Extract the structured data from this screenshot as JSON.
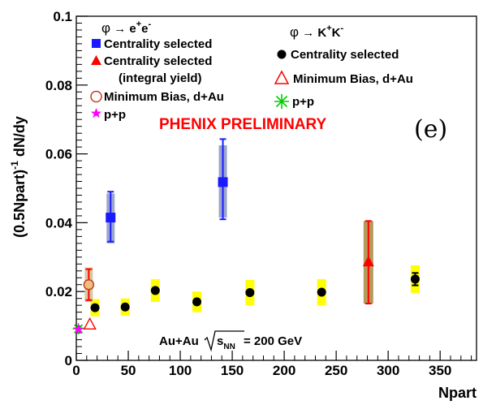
{
  "chart_data": {
    "type": "scatter",
    "xlabel": "Npart",
    "ylabel": "(0.5Npart)",
    "ylabel_sup": "-1",
    "ylabel_tail": " dN/dy",
    "xlim": [
      0,
      385
    ],
    "ylim": [
      0,
      0.1
    ],
    "x_ticks": [
      {
        "v": 0,
        "label": "0"
      },
      {
        "v": 50,
        "label": "50"
      },
      {
        "v": 100,
        "label": "100"
      },
      {
        "v": 150,
        "label": "150"
      },
      {
        "v": 200,
        "label": "200"
      },
      {
        "v": 250,
        "label": "250"
      },
      {
        "v": 300,
        "label": "300"
      },
      {
        "v": 350,
        "label": "350"
      }
    ],
    "y_ticks": [
      {
        "v": 0,
        "label": "0"
      },
      {
        "v": 0.02,
        "label": "0.02"
      },
      {
        "v": 0.04,
        "label": "0.04"
      },
      {
        "v": 0.06,
        "label": "0.06"
      },
      {
        "v": 0.08,
        "label": "0.08"
      },
      {
        "v": 0.1,
        "label": "0.1"
      }
    ],
    "grid": false,
    "legend_placement": "top",
    "legend": {
      "ee_header_phi": "φ",
      "ee_header_arrow": " → e",
      "ee_header_sup1": "+",
      "ee_header_mid": "e",
      "ee_header_sup2": "-",
      "kk_header_phi": "φ",
      "kk_header_arrow": " → K",
      "kk_header_sup1": "+",
      "kk_header_mid": "K",
      "kk_header_sup2": "-",
      "ee_centrality": "Centrality selected",
      "ee_integral": "Centrality selected",
      "ee_integral_2": "(integral yield)",
      "ee_minbias": "Minimum Bias, d+Au",
      "ee_pp": "p+p",
      "kk_centrality": "Centrality selected",
      "kk_minbias": "Minimum Bias, d+Au",
      "kk_pp": "p+p"
    },
    "annotations": {
      "preliminary": "PHENIX PRELIMINARY",
      "panel": "(e)",
      "system": "Au+Au",
      "sqrt_s": "s",
      "sqrt_sub": "NN",
      "energy": " = 200 GeV"
    },
    "colors": {
      "ee_centrality": "#1a1aff",
      "ee_centrality_sys": "#9ba6cf",
      "ee_integral": "#ff0000",
      "integral_sys": "#b59a5c",
      "kk_centrality": "#000000",
      "kk_sys": "#ffff00",
      "ee_minbias_fill": "#f0c080",
      "ee_minbias_edge": "#c04020",
      "ee_pp": "#ff00ff",
      "kk_minbias": "#ff0000",
      "kk_pp": "#00cc00",
      "preliminary": "#ff0000",
      "minbias_sys": "#d9c9a0"
    },
    "series": [
      {
        "name": "Centrality selected",
        "channel": "phi->e+e-",
        "marker": "square",
        "points": [
          {
            "x": 33,
            "y": 0.0415,
            "stat_lo": 0.0345,
            "stat_hi": 0.049,
            "sys_lo": 0.034,
            "sys_hi": 0.0485
          },
          {
            "x": 141,
            "y": 0.0518,
            "stat_lo": 0.041,
            "stat_hi": 0.0643,
            "sys_lo": 0.0415,
            "sys_hi": 0.0625
          }
        ]
      },
      {
        "name": "Centrality selected (integral yield)",
        "channel": "phi->e+e-",
        "marker": "triangle",
        "points": [
          {
            "x": 281,
            "y": 0.0285,
            "stat_lo": 0.0165,
            "stat_hi": 0.0405,
            "sys_lo": 0.0165,
            "sys_hi": 0.0405
          }
        ]
      },
      {
        "name": "Minimum Bias, d+Au",
        "channel": "phi->e+e-",
        "marker": "open-circle",
        "points": [
          {
            "x": 12,
            "y": 0.022,
            "stat_lo": 0.0175,
            "stat_hi": 0.0265,
            "sys_lo": 0.017,
            "sys_hi": 0.027
          }
        ]
      },
      {
        "name": "p+p",
        "channel": "phi->e+e-",
        "marker": "star",
        "points": [
          {
            "x": 2,
            "y": 0.009
          }
        ]
      },
      {
        "name": "Centrality selected",
        "channel": "phi->K+K-",
        "marker": "circle",
        "points": [
          {
            "x": 18,
            "y": 0.0153,
            "sys_lo": 0.0128,
            "sys_hi": 0.0178
          },
          {
            "x": 47,
            "y": 0.0155,
            "sys_lo": 0.013,
            "sys_hi": 0.018
          },
          {
            "x": 76,
            "y": 0.0203,
            "sys_lo": 0.017,
            "sys_hi": 0.0236
          },
          {
            "x": 116,
            "y": 0.017,
            "sys_lo": 0.014,
            "sys_hi": 0.02
          },
          {
            "x": 167,
            "y": 0.0197,
            "sys_lo": 0.016,
            "sys_hi": 0.0234
          },
          {
            "x": 236,
            "y": 0.0198,
            "sys_lo": 0.016,
            "sys_hi": 0.0236
          },
          {
            "x": 326,
            "y": 0.0236,
            "stat_lo": 0.0218,
            "stat_hi": 0.0254,
            "sys_lo": 0.0196,
            "sys_hi": 0.0276
          }
        ]
      },
      {
        "name": "Minimum Bias, d+Au",
        "channel": "phi->K+K-",
        "marker": "open-triangle",
        "points": [
          {
            "x": 13,
            "y": 0.0103
          }
        ]
      },
      {
        "name": "p+p",
        "channel": "phi->K+K-",
        "marker": "asterisk",
        "points": [
          {
            "x": 2,
            "y": 0.0092
          }
        ]
      }
    ]
  }
}
